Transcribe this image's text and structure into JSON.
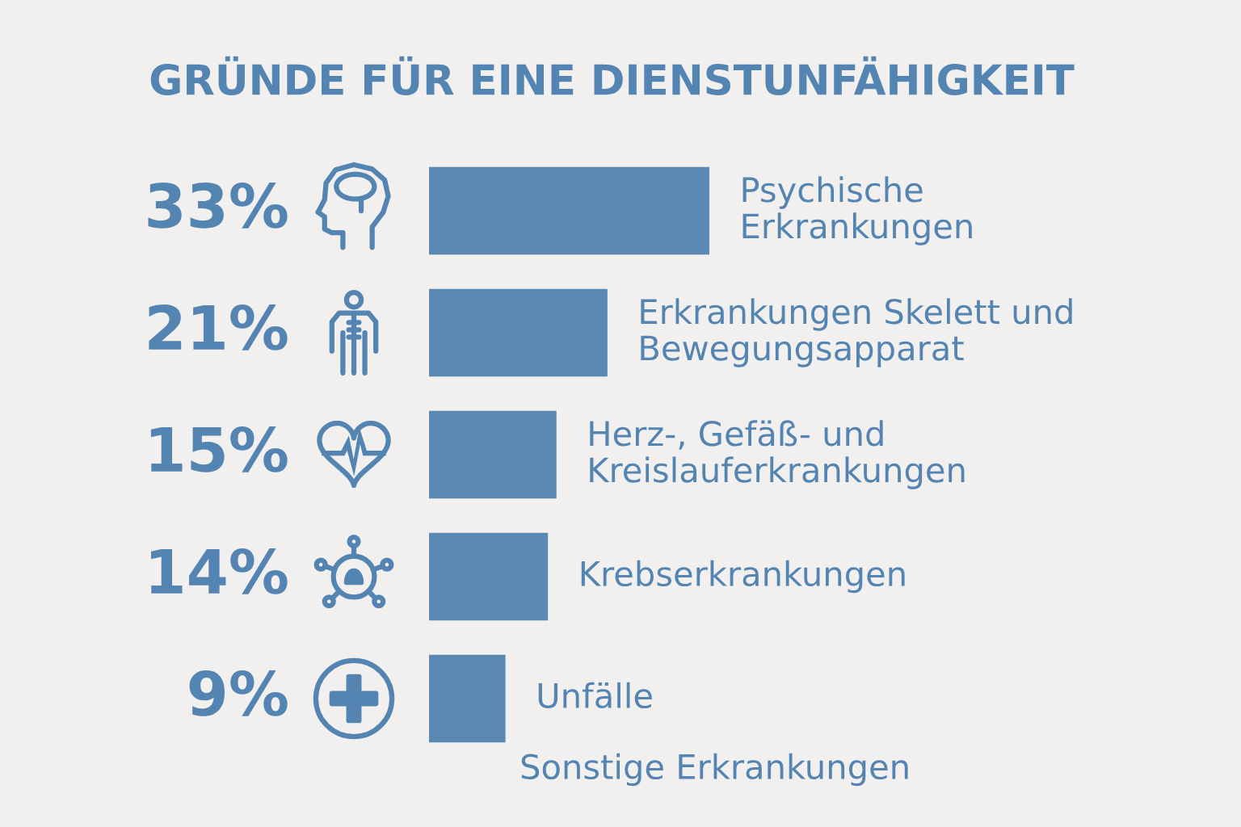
{
  "chart_data": {
    "type": "bar",
    "orientation": "horizontal",
    "title": "GRÜNDE FÜR EINE DIENSTUNFÄHIGKEIT",
    "categories": [
      "Psychische\nErkrankungen",
      "Erkrankungen Skelett und\nBewegungsapparat",
      "Herz-, Gefäß- und\nKreislauferkrankungen",
      "Krebserkrankungen",
      "Unfälle"
    ],
    "values": [
      33,
      21,
      15,
      14,
      9
    ],
    "value_labels": [
      "33%",
      "21%",
      "15%",
      "14%",
      "9%"
    ],
    "color": "#5a8ab4",
    "xlim": [
      0,
      33
    ],
    "tick_labels": false,
    "legend": false,
    "annotations": [
      "Sonstige Erkrankungen"
    ]
  }
}
